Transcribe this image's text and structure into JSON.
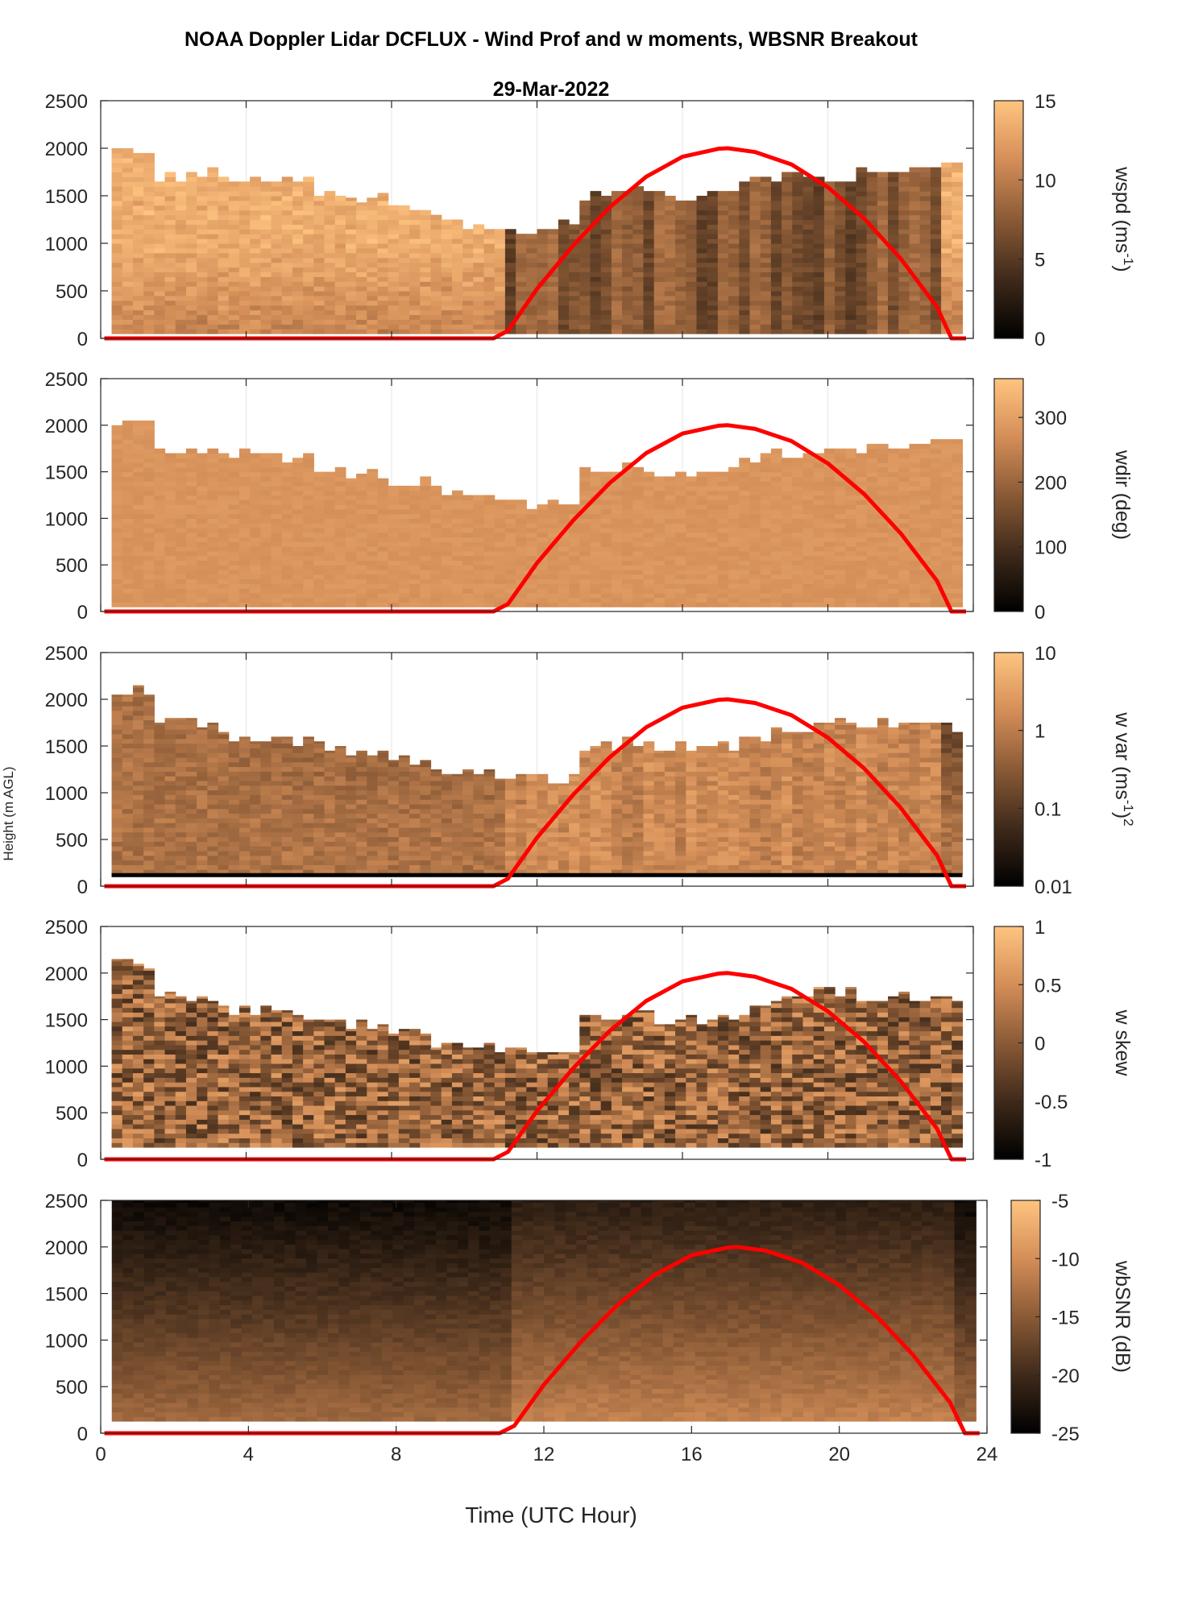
{
  "figure": {
    "title": "NOAA Doppler Lidar DCFLUX - Wind Prof and w moments, WBSNR Breakout",
    "date": "29-Mar-2022",
    "shared_ylabel": "Height (m AGL)",
    "xlabel": "Time (UTC Hour)",
    "x_ticks": [
      "0",
      "4",
      "8",
      "12",
      "16",
      "20",
      "24"
    ],
    "y_ticks": [
      "0",
      "500",
      "1000",
      "1500",
      "2000",
      "2500"
    ]
  },
  "colors": {
    "solar_curve": "#ff0000",
    "colormap_low": "#000000",
    "colormap_high": "#ffc480"
  },
  "chart_data": [
    {
      "type": "heatmap",
      "name": "wspd",
      "ylabel_main": "wspd (ms",
      "ylabel_sup": "-1",
      "ylabel_tail": ")",
      "colorbar_ticks": [
        "0",
        "5",
        "10",
        "15"
      ],
      "clim": [
        0,
        15
      ],
      "xlim": [
        0,
        24
      ],
      "ylim": [
        0,
        2500
      ],
      "top_height": [
        2000,
        1700,
        1750,
        1700,
        1650,
        1500,
        1480,
        1400,
        1300,
        1200,
        1150,
        1200,
        1500,
        1550,
        1500,
        1550,
        1650,
        1700,
        1700,
        1750,
        1800,
        1850
      ],
      "surface_height": 50
    },
    {
      "type": "heatmap",
      "name": "wdir",
      "ylabel_main": "wdir (deg)",
      "colorbar_ticks": [
        "0",
        "100",
        "200",
        "300"
      ],
      "clim": [
        0,
        360
      ],
      "xlim": [
        0,
        24
      ],
      "ylim": [
        0,
        2500
      ],
      "top_height": [
        2000,
        1700,
        1750,
        1700,
        1650,
        1500,
        1480,
        1400,
        1300,
        1200,
        1150,
        1200,
        1500,
        1550,
        1500,
        1550,
        1650,
        1700,
        1700,
        1750,
        1800,
        1850
      ],
      "surface_height": 50
    },
    {
      "type": "heatmap",
      "name": "w var",
      "ylabel_main": "w var (ms",
      "ylabel_sup": "-1",
      "ylabel_tail": ")",
      "ylabel_sup2": "2",
      "colorbar_ticks": [
        "0.01",
        "0.1",
        "1",
        "10"
      ],
      "clim": [
        0.01,
        10
      ],
      "scale": "log",
      "xlim": [
        0,
        24
      ],
      "ylim": [
        0,
        2500
      ],
      "top_height": [
        2100,
        1750,
        1700,
        1600,
        1550,
        1500,
        1450,
        1350,
        1250,
        1200,
        1150,
        1150,
        1500,
        1550,
        1500,
        1500,
        1600,
        1700,
        1800,
        1750,
        1750,
        1700
      ],
      "surface_height": 130
    },
    {
      "type": "heatmap",
      "name": "w skew",
      "ylabel_main": "w skew",
      "colorbar_ticks": [
        "-1",
        "-0.5",
        "0",
        "0.5",
        "1"
      ],
      "clim": [
        -1,
        1
      ],
      "xlim": [
        0,
        24
      ],
      "ylim": [
        0,
        2500
      ],
      "top_height": [
        2100,
        1750,
        1700,
        1600,
        1550,
        1500,
        1450,
        1350,
        1250,
        1200,
        1150,
        1150,
        1500,
        1550,
        1500,
        1500,
        1600,
        1700,
        1800,
        1750,
        1750,
        1700
      ],
      "surface_height": 130
    },
    {
      "type": "heatmap",
      "name": "wbSNR",
      "ylabel_main": "wbSNR (dB)",
      "colorbar_ticks": [
        "-25",
        "-20",
        "-15",
        "-10",
        "-5"
      ],
      "clim": [
        -25,
        -5
      ],
      "xlim": [
        0,
        24
      ],
      "ylim": [
        0,
        2500
      ],
      "surface_height": 130
    }
  ],
  "solar_curve": {
    "description_units": "height (m) vs time (UTC hour), same on all panels",
    "x": [
      0.1,
      10.8,
      11.2,
      12,
      13,
      14,
      15,
      16,
      17,
      17.25,
      18,
      19,
      20,
      21,
      22,
      23,
      23.4,
      23.8
    ],
    "y": [
      0,
      0,
      80,
      520,
      980,
      1380,
      1700,
      1910,
      1995,
      2000,
      1960,
      1830,
      1590,
      1260,
      840,
      330,
      0,
      0
    ]
  }
}
